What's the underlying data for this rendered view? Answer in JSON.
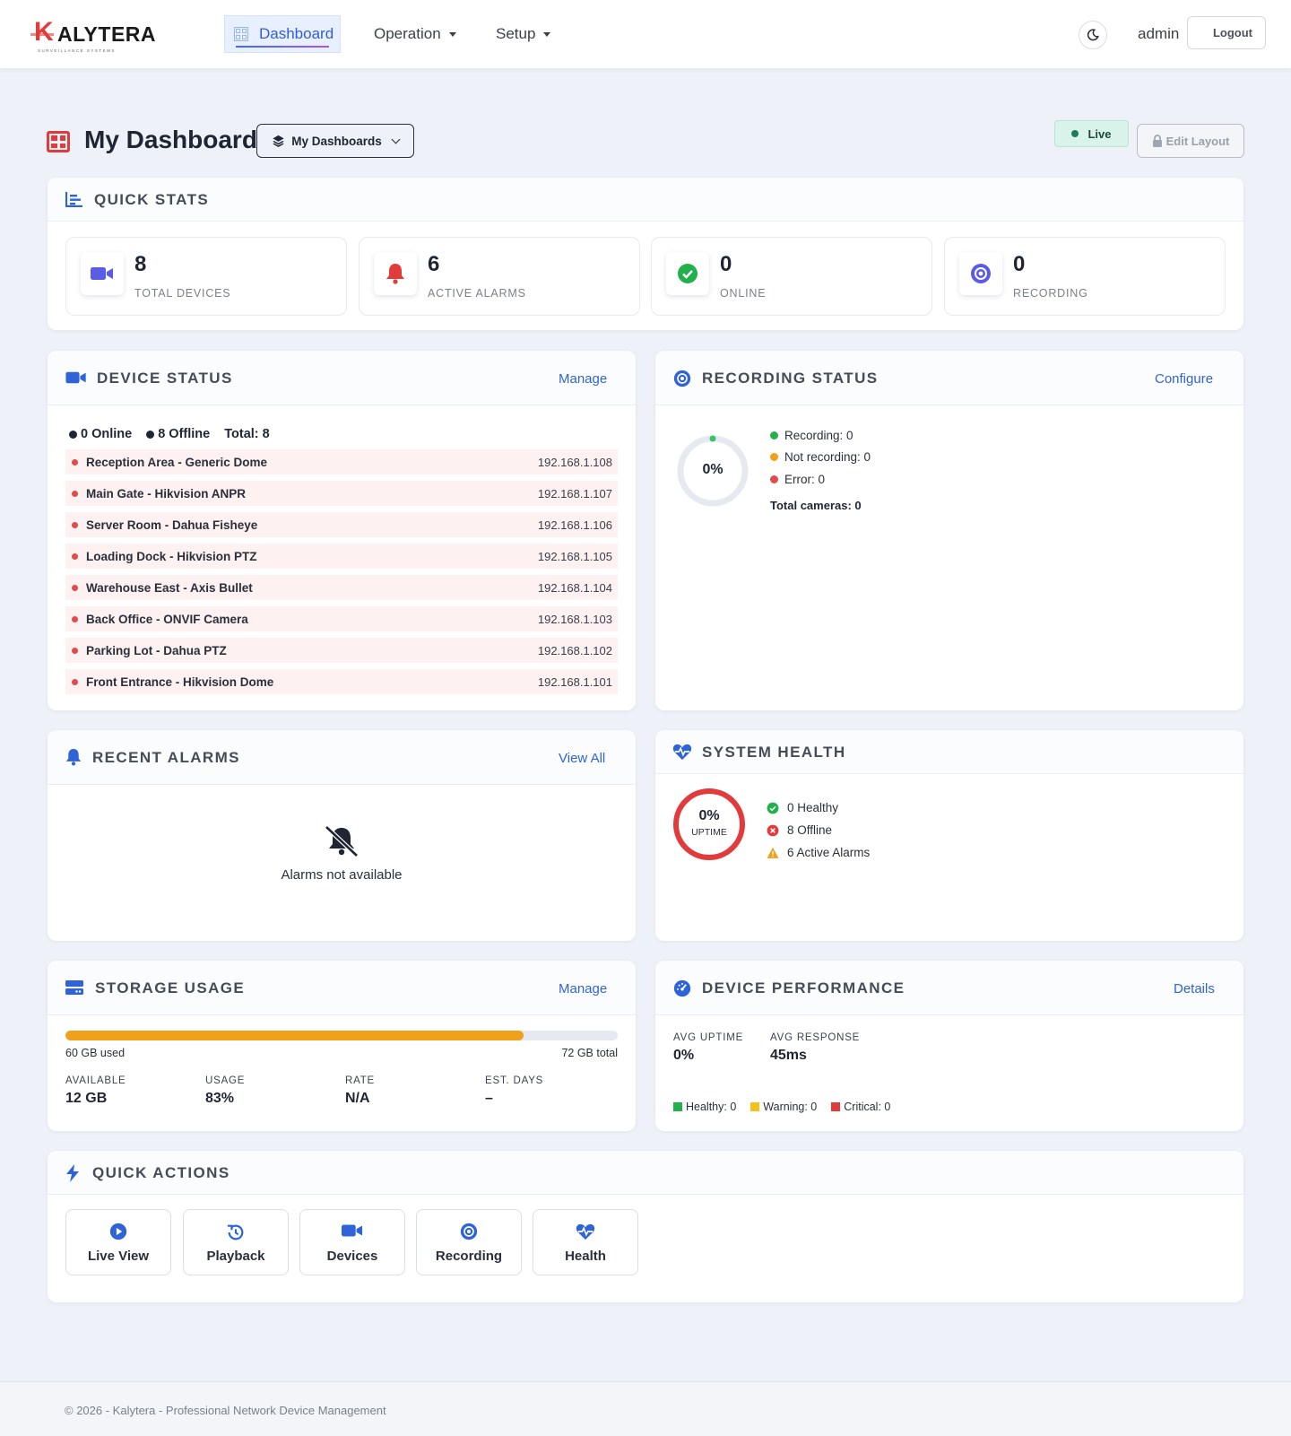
{
  "brand": {
    "name": "ALYTERA",
    "letter": "K",
    "tagline": "SURVEILLANCE SYSTEMS"
  },
  "nav": {
    "items": [
      {
        "label": "Dashboard",
        "active": true
      },
      {
        "label": "Operation"
      },
      {
        "label": "Setup"
      }
    ],
    "user": "admin",
    "logout": "Logout"
  },
  "header": {
    "title": "My Dashboard",
    "dashboards_button": "My Dashboards",
    "live": "Live",
    "edit_layout": "Edit Layout"
  },
  "quick_stats": {
    "title": "QUICK STATS",
    "items": [
      {
        "value": "8",
        "label": "TOTAL DEVICES",
        "icon": "video-camera-icon",
        "color": "#5b5ce6"
      },
      {
        "value": "6",
        "label": "ACTIVE ALARMS",
        "icon": "bell-icon",
        "color": "#e23b3b"
      },
      {
        "value": "0",
        "label": "ONLINE",
        "icon": "check-circle-icon",
        "color": "#22b04b"
      },
      {
        "value": "0",
        "label": "RECORDING",
        "icon": "record-icon",
        "color": "#5b5ce6"
      }
    ]
  },
  "device_status": {
    "title": "DEVICE STATUS",
    "link": "Manage",
    "online": "0 Online",
    "offline": "8 Offline",
    "total": "Total: 8",
    "devices": [
      {
        "name": "Reception Area - Generic Dome",
        "ip": "192.168.1.108"
      },
      {
        "name": "Main Gate - Hikvision ANPR",
        "ip": "192.168.1.107"
      },
      {
        "name": "Server Room - Dahua Fisheye",
        "ip": "192.168.1.106"
      },
      {
        "name": "Loading Dock - Hikvision PTZ",
        "ip": "192.168.1.105"
      },
      {
        "name": "Warehouse East - Axis Bullet",
        "ip": "192.168.1.104"
      },
      {
        "name": "Back Office - ONVIF Camera",
        "ip": "192.168.1.103"
      },
      {
        "name": "Parking Lot - Dahua PTZ",
        "ip": "192.168.1.102"
      },
      {
        "name": "Front Entrance - Hikvision Dome",
        "ip": "192.168.1.101"
      }
    ]
  },
  "recording_status": {
    "title": "RECORDING STATUS",
    "link": "Configure",
    "percent": "0%",
    "recording": "Recording: 0",
    "not_recording": "Not recording: 0",
    "error": "Error: 0",
    "total": "Total cameras: 0"
  },
  "recent_alarms": {
    "title": "RECENT ALARMS",
    "link": "View All",
    "empty": "Alarms not available"
  },
  "system_health": {
    "title": "SYSTEM HEALTH",
    "percent": "0%",
    "uptime_label": "UPTIME",
    "healthy": "0 Healthy",
    "offline": "8 Offline",
    "alarms": "6 Active Alarms"
  },
  "storage": {
    "title": "STORAGE USAGE",
    "link": "Manage",
    "used": "60 GB used",
    "total": "72 GB total",
    "fill_percent": 83,
    "stats": [
      {
        "label": "AVAILABLE",
        "value": "12 GB"
      },
      {
        "label": "USAGE",
        "value": "83%"
      },
      {
        "label": "RATE",
        "value": "N/A"
      },
      {
        "label": "EST. DAYS",
        "value": "–"
      }
    ]
  },
  "performance": {
    "title": "DEVICE PERFORMANCE",
    "link": "Details",
    "avg_uptime_label": "AVG UPTIME",
    "avg_uptime": "0%",
    "avg_response_label": "AVG RESPONSE",
    "avg_response": "45ms",
    "healthy": "Healthy: 0",
    "warning": "Warning: 0",
    "critical": "Critical: 0"
  },
  "quick_actions": {
    "title": "QUICK ACTIONS",
    "items": [
      {
        "label": "Live View",
        "icon": "play-circle-icon"
      },
      {
        "label": "Playback",
        "icon": "history-icon"
      },
      {
        "label": "Devices",
        "icon": "video-camera-icon"
      },
      {
        "label": "Recording",
        "icon": "record-icon"
      },
      {
        "label": "Health",
        "icon": "heart-pulse-icon"
      }
    ]
  },
  "footer": "© 2026 - Kalytera - Professional Network Device Management"
}
